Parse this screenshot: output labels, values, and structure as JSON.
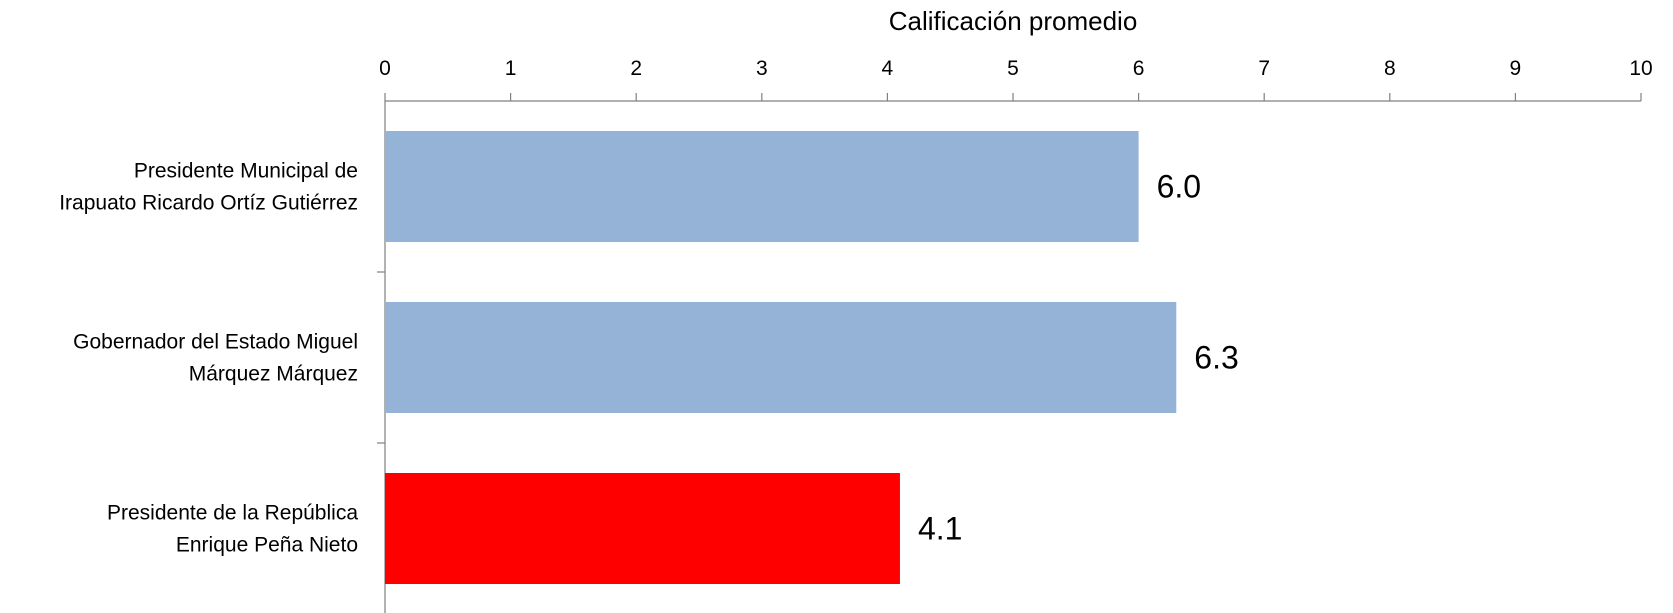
{
  "chart_data": {
    "type": "bar",
    "orientation": "horizontal",
    "xlabel": "Calificación promedio",
    "xlim": [
      0,
      10
    ],
    "x_ticks": [
      "0",
      "1",
      "2",
      "3",
      "4",
      "5",
      "6",
      "7",
      "8",
      "9",
      "10"
    ],
    "categories": [
      [
        "Presidente Municipal de",
        "Irapuato Ricardo Ortíz Gutiérrez"
      ],
      [
        "Gobernador del Estado Miguel",
        "Márquez Márquez"
      ],
      [
        "Presidente de la República",
        "Enrique Peña Nieto"
      ]
    ],
    "values": [
      6.0,
      6.3,
      4.1
    ],
    "data_labels": [
      "6.0",
      "6.3",
      "4.1"
    ],
    "bar_colors": [
      "#95b3d7",
      "#95b3d7",
      "#ff0000"
    ],
    "axis_position": "top",
    "grid": false,
    "legend": "none"
  }
}
